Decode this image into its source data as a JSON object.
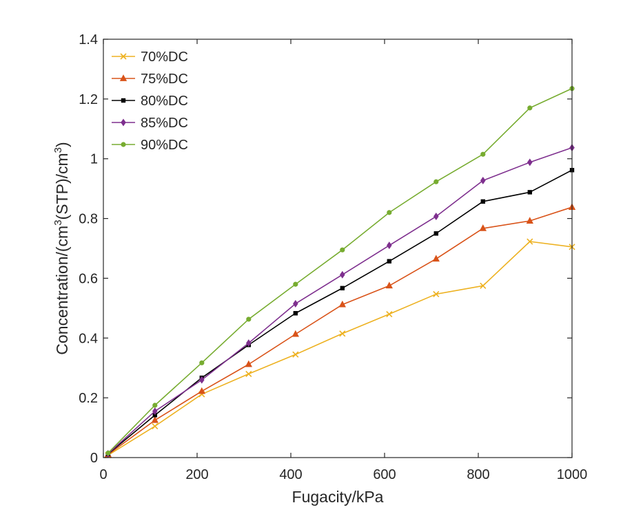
{
  "chart_data": {
    "type": "line",
    "title": "",
    "xlabel": "Fugacity/kPa",
    "ylabel": {
      "prefix": "Concentration/(cm",
      "sup1": "3",
      "middle": "(STP)/cm",
      "sup2": "3",
      "suffix": ")"
    },
    "xlim": [
      0,
      1000
    ],
    "ylim": [
      0,
      1.4
    ],
    "xticks": [
      0,
      200,
      400,
      600,
      800,
      1000
    ],
    "xtick_labels": [
      "0",
      "200",
      "400",
      "600",
      "800",
      "1000"
    ],
    "yticks": [
      0,
      0.2,
      0.4,
      0.6,
      0.8,
      1.0,
      1.2,
      1.4
    ],
    "ytick_labels": [
      "0",
      "0.2",
      "0.4",
      "0.6",
      "0.8",
      "1",
      "1.2",
      "1.4"
    ],
    "grid": false,
    "legend_position": "top-left",
    "x": [
      10,
      110,
      210,
      310,
      410,
      510,
      610,
      710,
      810,
      910,
      1000
    ],
    "series": [
      {
        "name": "70%DC",
        "color": "#EDB120",
        "marker": "x",
        "values": [
          0.008,
          0.105,
          0.212,
          0.28,
          0.345,
          0.415,
          0.48,
          0.547,
          0.575,
          0.723,
          0.705
        ]
      },
      {
        "name": "75%DC",
        "color": "#D95319",
        "marker": "triangle",
        "values": [
          0.01,
          0.125,
          0.222,
          0.312,
          0.413,
          0.512,
          0.575,
          0.665,
          0.767,
          0.792,
          0.838
        ]
      },
      {
        "name": "80%DC",
        "color": "#000000",
        "marker": "square",
        "values": [
          0.012,
          0.142,
          0.267,
          0.377,
          0.483,
          0.567,
          0.657,
          0.75,
          0.857,
          0.888,
          0.962
        ]
      },
      {
        "name": "85%DC",
        "color": "#7E2F8E",
        "marker": "diamond",
        "values": [
          0.013,
          0.155,
          0.26,
          0.383,
          0.515,
          0.612,
          0.71,
          0.807,
          0.927,
          0.988,
          1.037
        ]
      },
      {
        "name": "90%DC",
        "color": "#77AC30",
        "marker": "circle",
        "values": [
          0.015,
          0.175,
          0.317,
          0.463,
          0.58,
          0.695,
          0.82,
          0.923,
          1.015,
          1.17,
          1.235
        ]
      }
    ]
  }
}
